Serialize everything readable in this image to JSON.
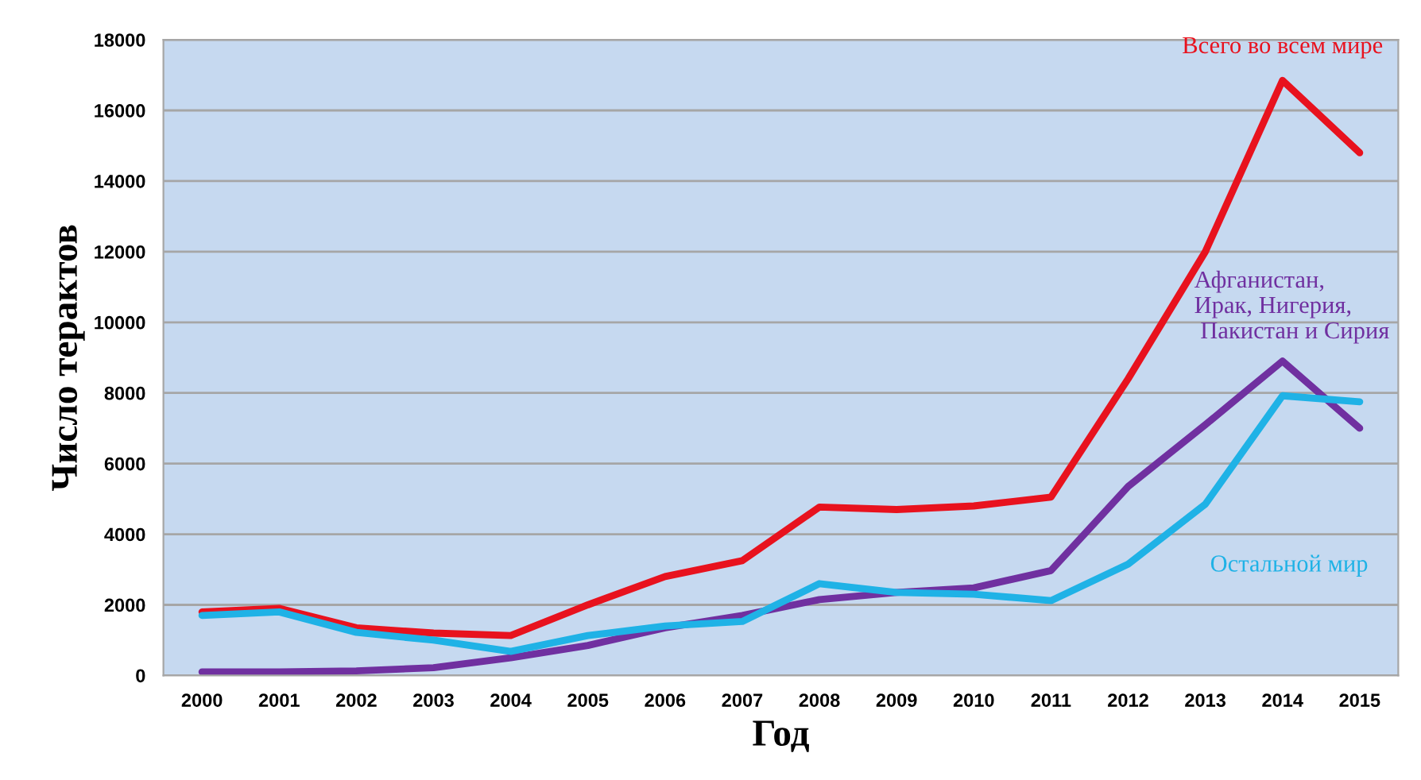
{
  "chart_data": {
    "type": "line",
    "xlabel": "Год",
    "ylabel": "Число терактов",
    "x": [
      2000,
      2001,
      2002,
      2003,
      2004,
      2005,
      2006,
      2007,
      2008,
      2009,
      2010,
      2011,
      2012,
      2013,
      2014,
      2015
    ],
    "series": [
      {
        "name": "Всего во всем мире",
        "color": "#e8121e",
        "values": [
          1800,
          1900,
          1350,
          1200,
          1130,
          2000,
          2800,
          3250,
          4770,
          4700,
          4800,
          5050,
          8400,
          12000,
          16850,
          14800
        ]
      },
      {
        "name": "Афганистан, Ирак, Нигерия, Пакистан и Сирия",
        "color": "#7030a0",
        "values": [
          100,
          100,
          130,
          220,
          500,
          850,
          1350,
          1700,
          2150,
          2350,
          2480,
          2970,
          5350,
          7100,
          8900,
          7000
        ]
      },
      {
        "name": "Остальной мир",
        "color": "#1fb2e6",
        "values": [
          1700,
          1800,
          1220,
          1000,
          680,
          1130,
          1400,
          1530,
          2600,
          2350,
          2300,
          2120,
          3150,
          4850,
          7920,
          7750
        ]
      }
    ],
    "xlim": [
      1999.5,
      2015.5
    ],
    "xticks": [
      2000,
      2001,
      2002,
      2003,
      2004,
      2005,
      2006,
      2007,
      2008,
      2009,
      2010,
      2011,
      2012,
      2013,
      2014,
      2015
    ],
    "ylim": [
      0,
      18000
    ],
    "yticks": [
      0,
      2000,
      4000,
      6000,
      8000,
      10000,
      12000,
      14000,
      16000,
      18000
    ],
    "grid": "y",
    "legend": false,
    "marker": "none",
    "line_style": "solid"
  }
}
